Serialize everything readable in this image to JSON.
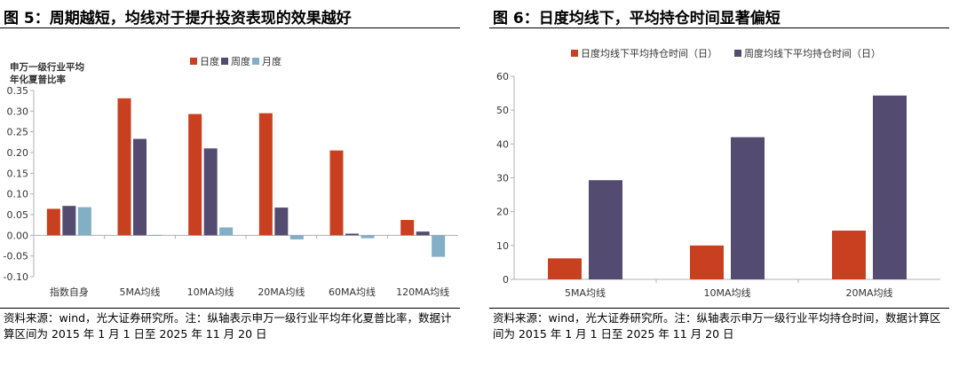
{
  "colors": {
    "daily": "#c8401f",
    "weekly": "#534c70",
    "monthly": "#82aec6",
    "axis": "#b0b0b0",
    "text": "#333333"
  },
  "left": {
    "title": "图 5：周期越短，均线对于提升投资表现的效果越好",
    "source": "资料来源：wind，光大证券研究所。注：纵轴表示申万一级行业平均年化夏普比率，数据计算区间为 2015 年 1 月 1 日至 2025 年 11 月 20 日"
  },
  "right": {
    "title": "图 6：日度均线下，平均持仓时间显著偏短",
    "source": "资料来源：wind，光大证券研究所。注：纵轴表示申万一级行业平均持仓时间，数据计算区间为 2015 年 1 月 1 日至 2025 年 11 月 20 日"
  },
  "chart_data": [
    {
      "type": "bar",
      "ylabel_lines": [
        "申万一级行业平均",
        "年化夏普比率"
      ],
      "categories": [
        "指数自身",
        "5MA均线",
        "10MA均线",
        "20MA均线",
        "60MA均线",
        "120MA均线"
      ],
      "series": [
        {
          "name": "日度",
          "color": "#c8401f",
          "values": [
            0.064,
            0.331,
            0.293,
            0.295,
            0.205,
            0.037
          ]
        },
        {
          "name": "周度",
          "color": "#534c70",
          "values": [
            0.071,
            0.233,
            0.21,
            0.067,
            0.004,
            0.009
          ]
        },
        {
          "name": "月度",
          "color": "#82aec6",
          "values": [
            0.068,
            0.001,
            0.019,
            -0.01,
            -0.007,
            -0.052
          ]
        }
      ],
      "ylim": [
        -0.1,
        0.35
      ],
      "yticks": [
        0.35,
        0.3,
        0.25,
        0.2,
        0.15,
        0.1,
        0.05,
        0.0,
        -0.05,
        -0.1
      ],
      "ytick_labels": [
        "0.35",
        "0.30",
        "0.25",
        "0.20",
        "0.15",
        "0.10",
        "0.05",
        "0.00",
        "-0.05",
        "-0.10"
      ],
      "legend": "top-center",
      "grid": false
    },
    {
      "type": "bar",
      "categories": [
        "5MA均线",
        "10MA均线",
        "20MA均线"
      ],
      "series": [
        {
          "name": "日度均线下平均持仓时间（日）",
          "color": "#c8401f",
          "values": [
            6.2,
            10.0,
            14.4
          ]
        },
        {
          "name": "周度均线下平均持仓时间（日）",
          "color": "#534c70",
          "values": [
            29.3,
            42.0,
            54.3
          ]
        }
      ],
      "ylim": [
        0,
        60
      ],
      "yticks": [
        60,
        50,
        40,
        30,
        20,
        10,
        0
      ],
      "ytick_labels": [
        "60",
        "50",
        "40",
        "30",
        "20",
        "10",
        "0"
      ],
      "legend": "top-center",
      "grid": false
    }
  ]
}
